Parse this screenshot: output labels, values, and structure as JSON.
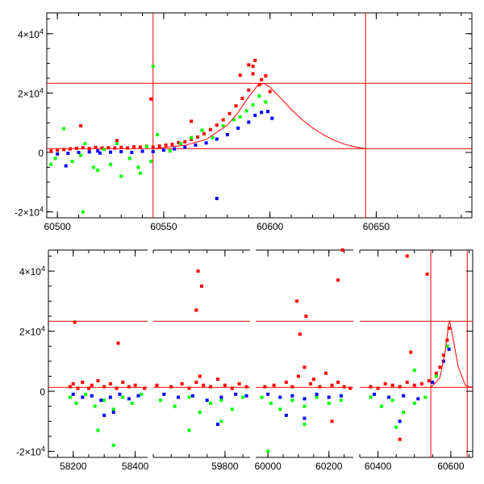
{
  "chart_data": [
    {
      "type": "scatter",
      "panel": "top",
      "xlim": [
        60495,
        60695
      ],
      "ylim": [
        -22000,
        47000
      ],
      "x_ticks": [
        "60500",
        "60550",
        "60600",
        "60650"
      ],
      "x_tick_values": [
        60500,
        60550,
        60600,
        60650
      ],
      "y_ticks": [
        {
          "value": 40000,
          "mantissa": "4×10",
          "exp": "4"
        },
        {
          "value": 20000,
          "mantissa": "2×10",
          "exp": "4"
        },
        {
          "value": 0,
          "mantissa": "0",
          "exp": ""
        },
        {
          "value": -20000,
          "mantissa": "-2×10",
          "exp": "4"
        }
      ],
      "hlines": [
        23300,
        1300
      ],
      "vlines": [
        60545,
        60645
      ],
      "model_curve": {
        "color": "#ff0000",
        "x": [
          60545,
          60560,
          60570,
          60580,
          60585,
          60590,
          60594,
          60597,
          60600,
          60605,
          60610,
          60615,
          60620,
          60625,
          60630,
          60635,
          60640,
          60645
        ],
        "y": [
          1300,
          2400,
          4400,
          9200,
          13500,
          18700,
          22400,
          23300,
          22000,
          18300,
          14500,
          11100,
          8300,
          6000,
          4200,
          2800,
          1900,
          1300
        ]
      },
      "series": [
        {
          "color": "#ff0000",
          "x": [
            60497,
            60500,
            60503,
            60506,
            60509,
            60512,
            60515,
            60518,
            60521,
            60524,
            60527,
            60530,
            60533,
            60536,
            60539,
            60542,
            60545,
            60548,
            60551,
            60554,
            60557,
            60560,
            60563,
            60566,
            60569,
            60572,
            60575,
            60578,
            60581,
            60584,
            60587,
            60590,
            60592,
            60593,
            60595,
            60596,
            60598,
            60600,
            60511,
            60544,
            60586,
            60590,
            60563,
            60528,
            60592
          ],
          "y": [
            500,
            800,
            1000,
            1200,
            1400,
            1600,
            1300,
            1700,
            1500,
            1600,
            1500,
            1700,
            1500,
            1900,
            1800,
            2100,
            1800,
            2200,
            2500,
            2700,
            3300,
            3600,
            4400,
            5200,
            6300,
            7700,
            9200,
            11000,
            13100,
            15700,
            18200,
            21000,
            26500,
            31000,
            22800,
            24500,
            25800,
            20500,
            9000,
            18000,
            26000,
            29500,
            10500,
            4000,
            29000
          ]
        },
        {
          "color": "#00ff00",
          "x": [
            60497,
            60499,
            60503,
            60507,
            60511,
            60513,
            60517,
            60519,
            60522,
            60525,
            60528,
            60530,
            60534,
            60538,
            60542,
            60544,
            60547,
            60553,
            60558,
            60563,
            60568,
            60573,
            60578,
            60583,
            60586,
            60589,
            60592,
            60595,
            60598,
            60512,
            60539,
            60545
          ],
          "y": [
            -4000,
            -2000,
            8000,
            -3000,
            -1000,
            3000,
            -5000,
            -6000,
            1000,
            -4000,
            3000,
            -8000,
            -2000,
            -5000,
            2000,
            -3000,
            6000,
            500,
            3000,
            5000,
            7500,
            5000,
            9000,
            11000,
            12000,
            14000,
            16000,
            19000,
            17000,
            -20000,
            -7000,
            29000
          ]
        },
        {
          "color": "#0000ff",
          "x": [
            60500,
            60505,
            60510,
            60515,
            60520,
            60525,
            60530,
            60535,
            60540,
            60545,
            60550,
            60555,
            60560,
            60565,
            60570,
            60575,
            60580,
            60585,
            60590,
            60593,
            60596,
            60599,
            60601,
            60504,
            60519,
            60575
          ],
          "y": [
            -500,
            -300,
            0,
            200,
            -200,
            100,
            300,
            0,
            400,
            300,
            800,
            1200,
            1800,
            2500,
            3200,
            4500,
            6000,
            8200,
            10200,
            12500,
            13500,
            13800,
            11500,
            -4500,
            500,
            -15500
          ]
        }
      ]
    },
    {
      "type": "scatter",
      "panel": "bottom",
      "broken_x_axis": true,
      "ylim": [
        -22000,
        47000
      ],
      "segments": [
        {
          "xlim": [
            58120,
            58440
          ],
          "x_ticks": [
            "58200",
            "58400"
          ],
          "x_tick_values": [
            58200,
            58400
          ]
        },
        {
          "xlim": [
            59600,
            59870
          ],
          "x_ticks": [
            "59800"
          ],
          "x_tick_values": [
            59800
          ]
        },
        {
          "xlim": [
            59960,
            60280
          ],
          "x_ticks": [
            "60000",
            "60200"
          ],
          "x_tick_values": [
            60000,
            60200
          ]
        },
        {
          "xlim": [
            60350,
            60660
          ],
          "x_ticks": [
            "60400",
            "60600"
          ],
          "x_tick_values": [
            60400,
            60600
          ]
        }
      ],
      "y_ticks": [
        {
          "value": 40000,
          "mantissa": "4×10",
          "exp": "4"
        },
        {
          "value": 20000,
          "mantissa": "2×10",
          "exp": "4"
        },
        {
          "value": 0,
          "mantissa": "0",
          "exp": ""
        },
        {
          "value": -20000,
          "mantissa": "-2×10",
          "exp": "4"
        }
      ],
      "hlines": [
        23300,
        1300
      ],
      "vlines": [
        60545,
        60645
      ],
      "model_curve": {
        "color": "#ff0000",
        "x": [
          60545,
          60570,
          60585,
          60594,
          60597,
          60605,
          60620,
          60640,
          60660
        ],
        "y": [
          1300,
          4400,
          13500,
          22400,
          23300,
          18300,
          8300,
          1900,
          1300
        ]
      },
      "series": [
        {
          "color": "#ff0000",
          "x": [
            58190,
            58200,
            58215,
            58230,
            58250,
            58260,
            58280,
            58300,
            58320,
            58340,
            58360,
            58380,
            58400,
            58430,
            58205,
            58345,
            59610,
            59650,
            59680,
            59700,
            59720,
            59730,
            59740,
            59760,
            59780,
            59800,
            59820,
            59840,
            59860,
            59725,
            59735,
            59720,
            59990,
            60020,
            60060,
            60080,
            60100,
            60120,
            60140,
            60150,
            60170,
            60190,
            60210,
            60230,
            60250,
            60270,
            60095,
            60105,
            60125,
            60245,
            60230,
            60380,
            60400,
            60420,
            60440,
            60460,
            60480,
            60500,
            60520,
            60540,
            60560,
            60570,
            60580,
            60590,
            60595,
            60480,
            60490,
            60535,
            60460,
            60210
          ],
          "y": [
            1500,
            2500,
            1000,
            3000,
            1000,
            2000,
            3500,
            1500,
            2500,
            1000,
            3000,
            1500,
            2000,
            1000,
            23000,
            16000,
            2000,
            1500,
            2500,
            1000,
            3000,
            5000,
            2000,
            1500,
            4000,
            2000,
            1000,
            2500,
            1500,
            40000,
            35000,
            27000,
            1500,
            2000,
            3000,
            1500,
            5000,
            8000,
            2500,
            4000,
            1500,
            6000,
            2000,
            3000,
            1500,
            1000,
            30000,
            19000,
            25000,
            47000,
            37000,
            1500,
            1000,
            2500,
            2000,
            1500,
            3000,
            2000,
            2500,
            3500,
            6000,
            8000,
            12000,
            17000,
            21000,
            45000,
            13000,
            39000,
            -16000,
            -10000
          ]
        },
        {
          "color": "#00ff00",
          "x": [
            58190,
            58210,
            58240,
            58270,
            58300,
            58330,
            58360,
            58390,
            58420,
            58280,
            58330,
            59620,
            59660,
            59700,
            59730,
            59760,
            59790,
            59820,
            59850,
            59700,
            59790,
            59980,
            60010,
            60040,
            60080,
            60120,
            60160,
            60200,
            60240,
            60120,
            60000,
            60380,
            60410,
            60440,
            60470,
            60500,
            60530,
            60560,
            60590,
            60450,
            60500
          ],
          "y": [
            -2000,
            -4000,
            -1000,
            -5000,
            -3000,
            -6000,
            -2000,
            -4000,
            -1000,
            -13000,
            -18000,
            -3000,
            -5000,
            -2000,
            -7000,
            -4000,
            -3000,
            -6000,
            -2000,
            -13000,
            -10000,
            -2000,
            -4000,
            -6000,
            -3000,
            -5000,
            -2000,
            -4000,
            -3000,
            -11000,
            -20000,
            -2000,
            -5000,
            -3000,
            -7000,
            -4000,
            -2000,
            5000,
            15000,
            -12000,
            7000
          ]
        },
        {
          "color": "#0000ff",
          "x": [
            58200,
            58230,
            58260,
            58290,
            58320,
            58350,
            58380,
            58410,
            58300,
            58330,
            59630,
            59670,
            59710,
            59750,
            59790,
            59830,
            59860,
            59780,
            60000,
            60040,
            60080,
            60120,
            60160,
            60200,
            60240,
            60060,
            60120,
            60390,
            60430,
            60470,
            60510,
            60550,
            60580,
            60595,
            60460
          ],
          "y": [
            -1000,
            -2000,
            -1500,
            -3000,
            -2000,
            -1000,
            -2500,
            -1500,
            -8000,
            -7000,
            -1000,
            -2000,
            -1500,
            -3000,
            -2000,
            -1000,
            -1500,
            -11000,
            -1000,
            -2000,
            -1500,
            -2500,
            -1000,
            -2000,
            -1500,
            -8000,
            -9000,
            -1000,
            -2000,
            -1500,
            -2500,
            3000,
            10000,
            14000,
            -10000
          ]
        }
      ]
    }
  ]
}
